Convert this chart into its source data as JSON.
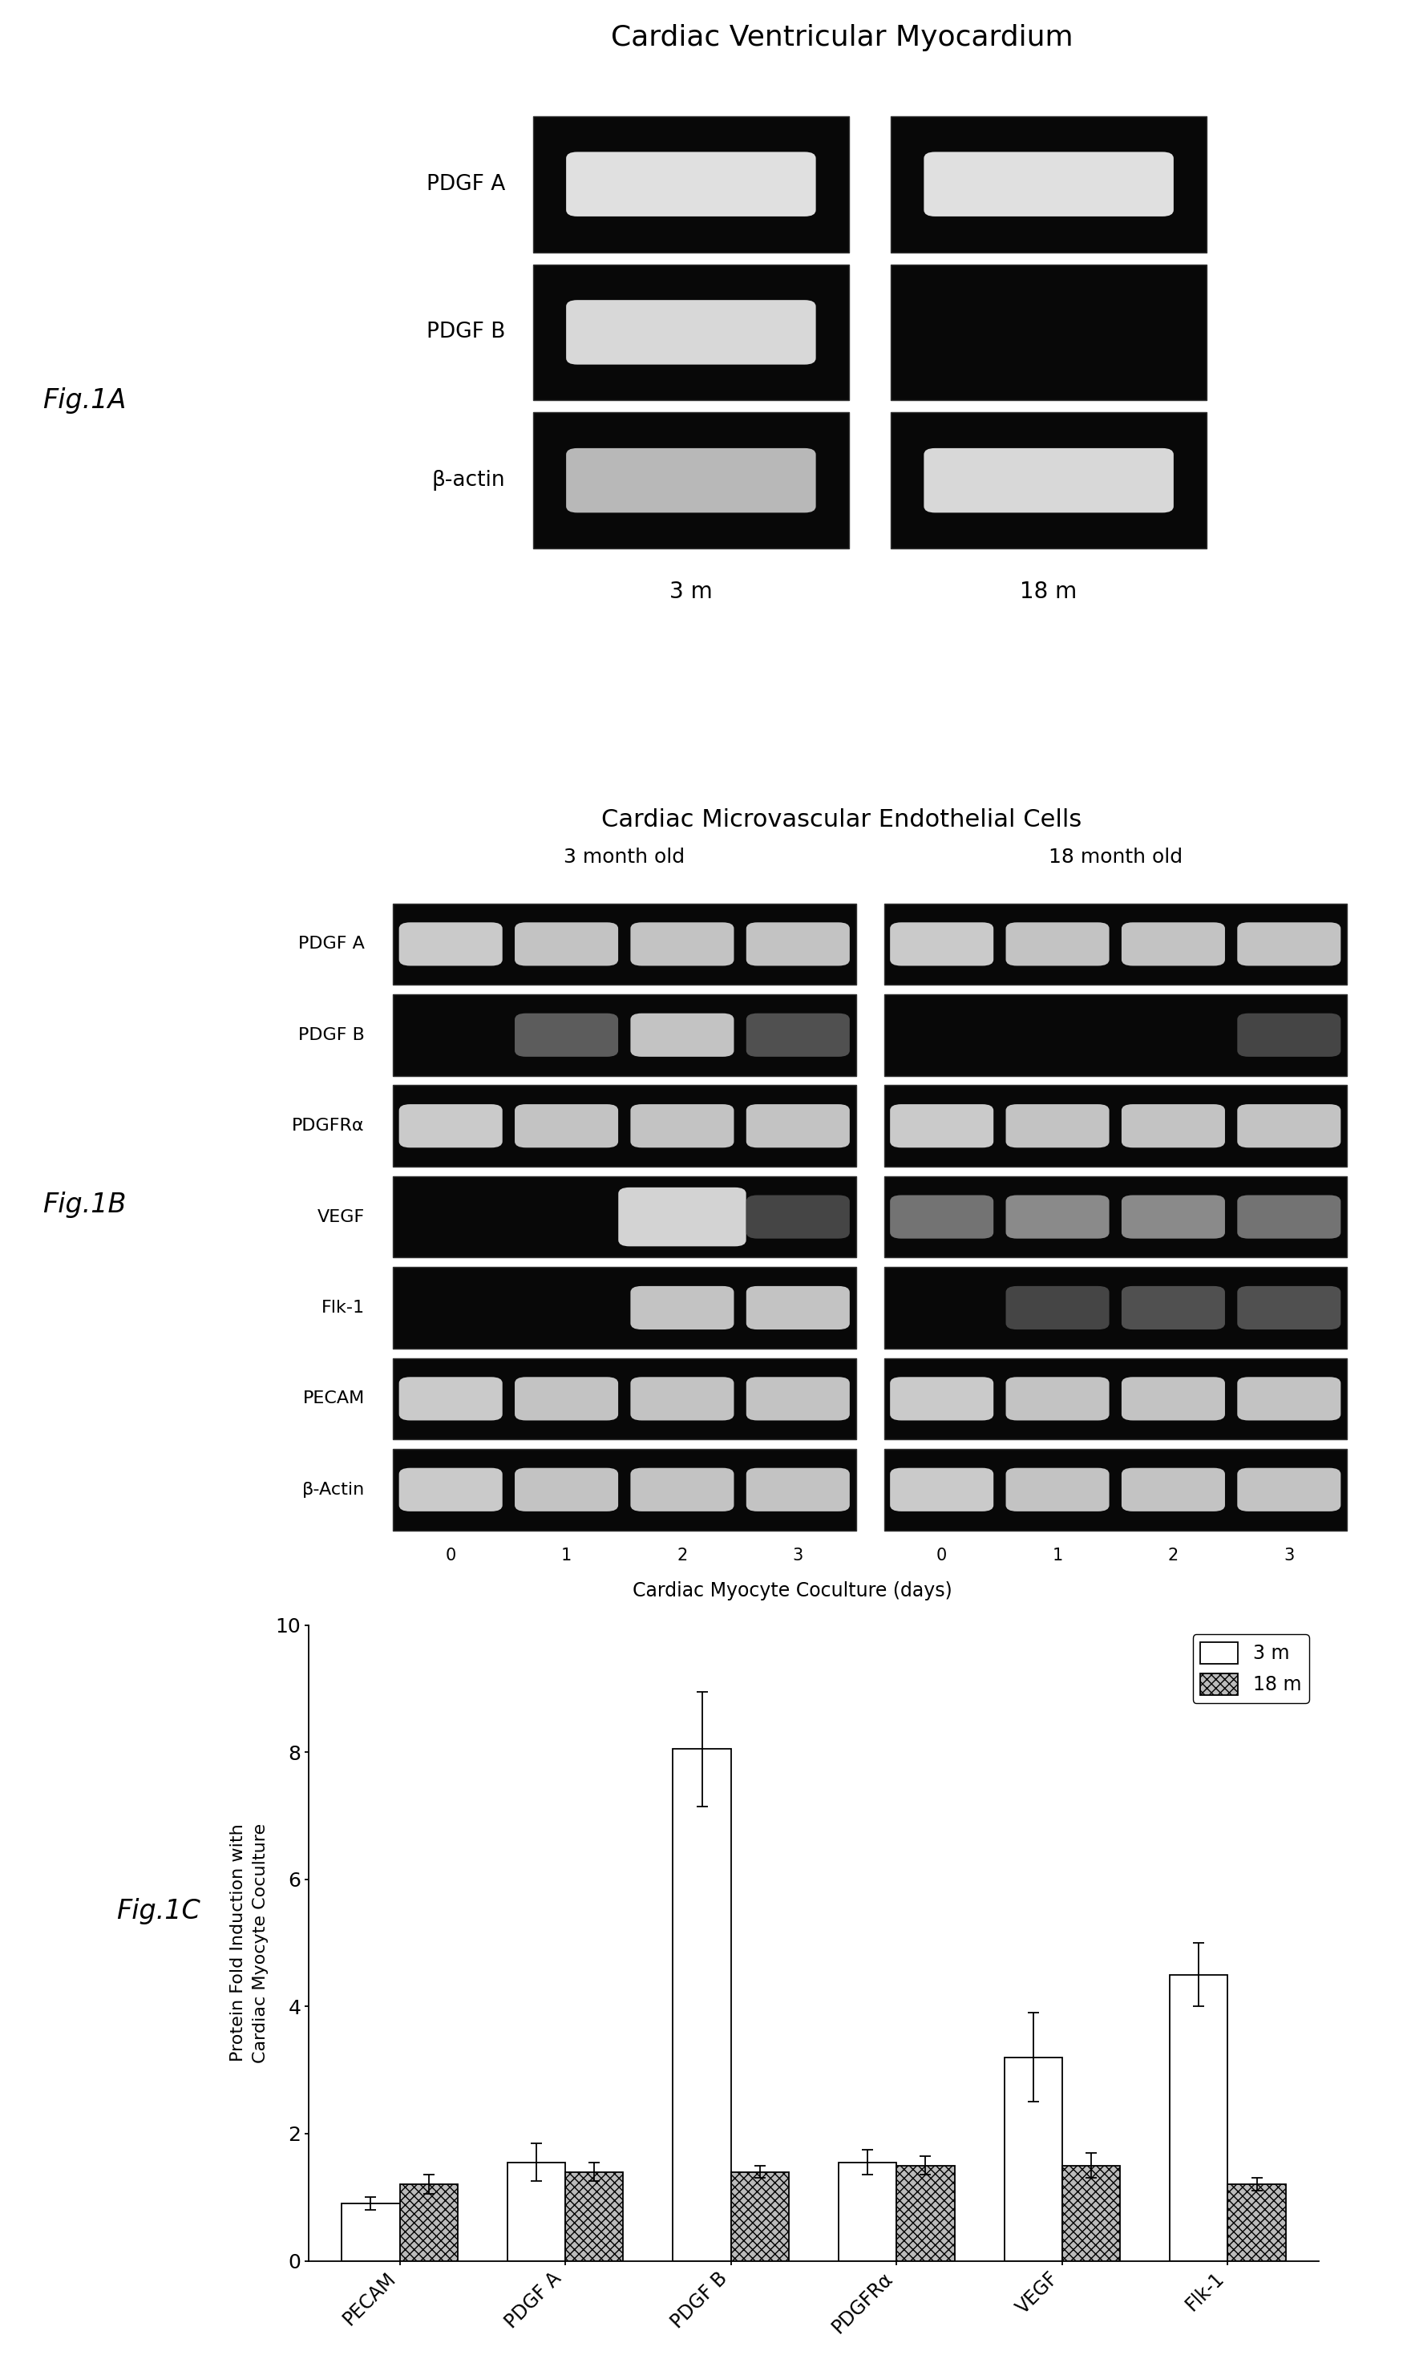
{
  "background_color": "#ffffff",
  "fig_width": 17.5,
  "fig_height": 29.37,
  "figA": {
    "title": "Cardiac Ventricular Myocardium",
    "labels": [
      "PDGF A",
      "PDGF B",
      "β-actin"
    ],
    "xlabel_left": "3 m",
    "xlabel_right": "18 m",
    "gel_bg": "#080808",
    "band_color": "#e0e0e0"
  },
  "figB": {
    "title": "Cardiac Microvascular Endothelial Cells",
    "subtitle_left": "3 month old",
    "subtitle_right": "18 month old",
    "labels": [
      "PDGF A",
      "PDGF B",
      "PDGFRα",
      "VEGF",
      "Flk-1",
      "PECAM",
      "β-Actin"
    ],
    "xlabel": "Cardiac Myocyte Coculture (days)",
    "tick_labels": [
      "0",
      "1",
      "2",
      "3"
    ],
    "gel_bg": "#080808"
  },
  "figC": {
    "categories": [
      "PECAM",
      "PDGF A",
      "PDGF B",
      "PDGFRα",
      "VEGF",
      "Flk-1"
    ],
    "values_3m": [
      0.9,
      1.55,
      8.05,
      1.55,
      3.2,
      4.5
    ],
    "values_18m": [
      1.2,
      1.4,
      1.4,
      1.5,
      1.5,
      1.2
    ],
    "errors_3m": [
      0.1,
      0.3,
      0.9,
      0.2,
      0.7,
      0.5
    ],
    "errors_18m": [
      0.15,
      0.15,
      0.1,
      0.15,
      0.2,
      0.1
    ],
    "ylabel": "Protein Fold Induction with\nCardiac Myocyte Coculture",
    "ylim": [
      0,
      10
    ],
    "yticks": [
      0,
      2,
      4,
      6,
      8,
      10
    ],
    "legend_3m": "3 m",
    "legend_18m": "18 m",
    "bar_color_3m": "#ffffff",
    "bar_color_18m": "#bbbbbb",
    "bar_edgecolor": "#000000",
    "bar_width": 0.35
  },
  "fig_labels": {
    "A": "Fig.1A",
    "B": "Fig.1B",
    "C": "Fig.1C"
  }
}
